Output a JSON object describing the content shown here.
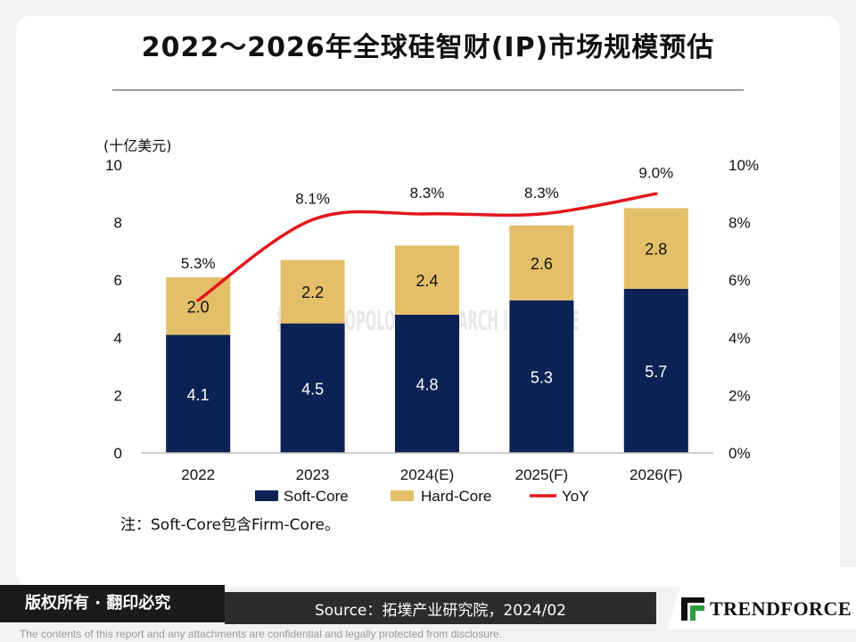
{
  "title": "2022～2026年全球硅智财(IP)市场规模预估",
  "unit_label": "(十亿美元)",
  "note": "注：Soft-Core包含Firm-Core。",
  "watermark": "拓墣 TRI TOPOLOGY RESEARCH INSTITUTE",
  "footer": {
    "rights": "版权所有 · 翻印必究",
    "source": "Source：拓墣产业研究院，2024/02",
    "brand": "TRENDFORCE",
    "disclaimer": "The contents of this report and any attachments are confidential and legally protected from disclosure."
  },
  "colors": {
    "soft_core": "#0c2254",
    "hard_core": "#e4bf69",
    "yoy": "#e3171d",
    "axis": "#bfbfbf"
  },
  "chart_data": {
    "type": "bar",
    "stacked": true,
    "title": "2022～2026年全球硅智财(IP)市场规模预估",
    "ylabel": "(十亿美元)",
    "ylim": [
      0,
      10
    ],
    "yticks": [
      "0",
      "2",
      "4",
      "6",
      "8",
      "10"
    ],
    "y2lim": [
      0,
      10
    ],
    "y2ticks": [
      "0%",
      "2%",
      "4%",
      "6%",
      "8%",
      "10%"
    ],
    "categories": [
      "2022",
      "2023",
      "2024(E)",
      "2025(F)",
      "2026(F)"
    ],
    "series": [
      {
        "name": "Soft-Core",
        "values": [
          4.1,
          4.5,
          4.8,
          5.3,
          5.7
        ],
        "labels": [
          "4.1",
          "4.5",
          "4.8",
          "5.3",
          "5.7"
        ]
      },
      {
        "name": "Hard-Core",
        "values": [
          2.0,
          2.2,
          2.4,
          2.6,
          2.8
        ],
        "labels": [
          "2.0",
          "2.2",
          "2.4",
          "2.6",
          "2.8"
        ]
      }
    ],
    "line": {
      "name": "YoY",
      "axis": "right",
      "values": [
        5.3,
        8.1,
        8.3,
        8.3,
        9.0
      ],
      "labels": [
        "5.3%",
        "8.1%",
        "8.3%",
        "8.3%",
        "9.0%"
      ]
    },
    "legend": [
      "Soft-Core",
      "Hard-Core",
      "YoY"
    ],
    "legend_position": "bottom"
  }
}
